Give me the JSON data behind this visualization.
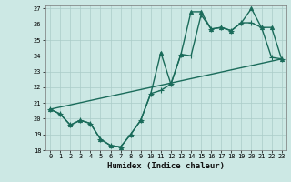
{
  "title": "",
  "xlabel": "Humidex (Indice chaleur)",
  "xlim": [
    -0.5,
    23.5
  ],
  "ylim": [
    18,
    27.2
  ],
  "yticks": [
    18,
    19,
    20,
    21,
    22,
    23,
    24,
    25,
    26,
    27
  ],
  "xticks": [
    0,
    1,
    2,
    3,
    4,
    5,
    6,
    7,
    8,
    9,
    10,
    11,
    12,
    13,
    14,
    15,
    16,
    17,
    18,
    19,
    20,
    21,
    22,
    23
  ],
  "bg_color": "#cce8e4",
  "grid_color": "#aaccc8",
  "line_color": "#1a6b5a",
  "line1_x": [
    0,
    1,
    2,
    3,
    4,
    5,
    6,
    7,
    8,
    9,
    10,
    11,
    12,
    13,
    14,
    15,
    16,
    17,
    18,
    19,
    20,
    21,
    22,
    23
  ],
  "line1_y": [
    20.6,
    20.3,
    19.6,
    19.9,
    19.7,
    18.7,
    18.3,
    18.2,
    19.0,
    19.9,
    21.6,
    21.8,
    22.2,
    24.1,
    24.0,
    26.6,
    25.7,
    25.8,
    25.6,
    26.1,
    26.1,
    25.8,
    23.9,
    23.8
  ],
  "line2_x": [
    0,
    1,
    2,
    3,
    4,
    5,
    6,
    7,
    8,
    9,
    10,
    11,
    12,
    13,
    14,
    15,
    16,
    17,
    18,
    19,
    20,
    21,
    22,
    23
  ],
  "line2_y": [
    20.6,
    20.3,
    19.6,
    19.9,
    19.7,
    18.7,
    18.3,
    18.2,
    19.0,
    19.9,
    21.6,
    24.2,
    22.2,
    24.1,
    26.8,
    26.8,
    25.7,
    25.8,
    25.6,
    26.1,
    27.0,
    25.8,
    25.8,
    23.8
  ],
  "line3_x": [
    0,
    23
  ],
  "line3_y": [
    20.6,
    23.8
  ],
  "lw": 1.0,
  "marker_plus_size": 4,
  "marker_tri_size": 3
}
